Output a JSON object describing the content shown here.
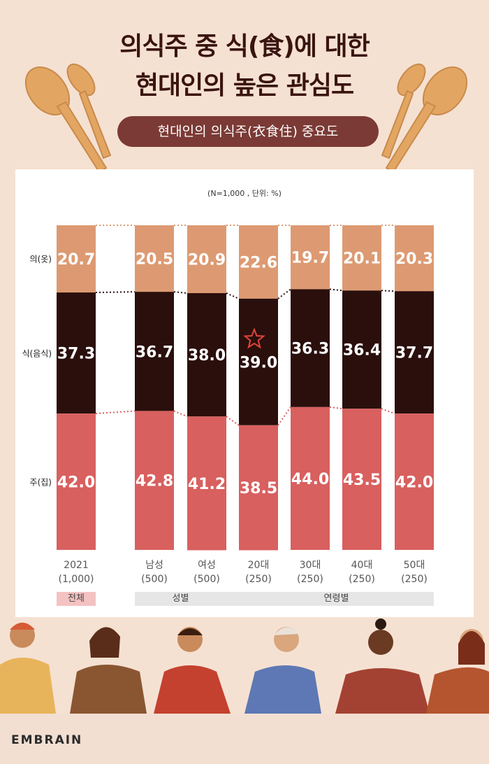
{
  "title": {
    "line1": "의식주 중 식(食)에 대한",
    "line2": "현대인의 높은 관심도"
  },
  "subtitle": "현대인의 의식주(衣食住) 중요도",
  "note": "(N=1,000 , 단위: %)",
  "brand": "EMBRAIN",
  "colors": {
    "clothing": "#dd9a72",
    "food": "#2a0f0c",
    "housing": "#d8605f",
    "accent": "#7b3a35",
    "star": "#e0463a"
  },
  "chart_data": {
    "type": "bar",
    "stacked": true,
    "ylim": [
      0,
      100
    ],
    "categories": [
      "2021",
      "남성",
      "여성",
      "20대",
      "30대",
      "40대",
      "50대"
    ],
    "category_sublabels": [
      "(1,000)",
      "(500)",
      "(500)",
      "(250)",
      "(250)",
      "(250)",
      "(250)"
    ],
    "groups": [
      {
        "label": "전체",
        "members": [
          "2021"
        ]
      },
      {
        "label": "성별",
        "members": [
          "남성",
          "여성"
        ]
      },
      {
        "label": "연령별",
        "members": [
          "20대",
          "30대",
          "40대",
          "50대"
        ]
      }
    ],
    "series": [
      {
        "name": "의(옷)",
        "values": [
          20.7,
          20.5,
          20.9,
          22.6,
          19.7,
          20.1,
          20.3
        ]
      },
      {
        "name": "식(음식)",
        "values": [
          37.3,
          36.7,
          38.0,
          39.0,
          36.3,
          36.4,
          37.7
        ]
      },
      {
        "name": "주(집)",
        "values": [
          42.0,
          42.8,
          41.2,
          38.5,
          44.0,
          43.5,
          42.0
        ]
      }
    ],
    "highlight": {
      "category": "20대",
      "series": "식(음식)",
      "marker": "star"
    }
  }
}
